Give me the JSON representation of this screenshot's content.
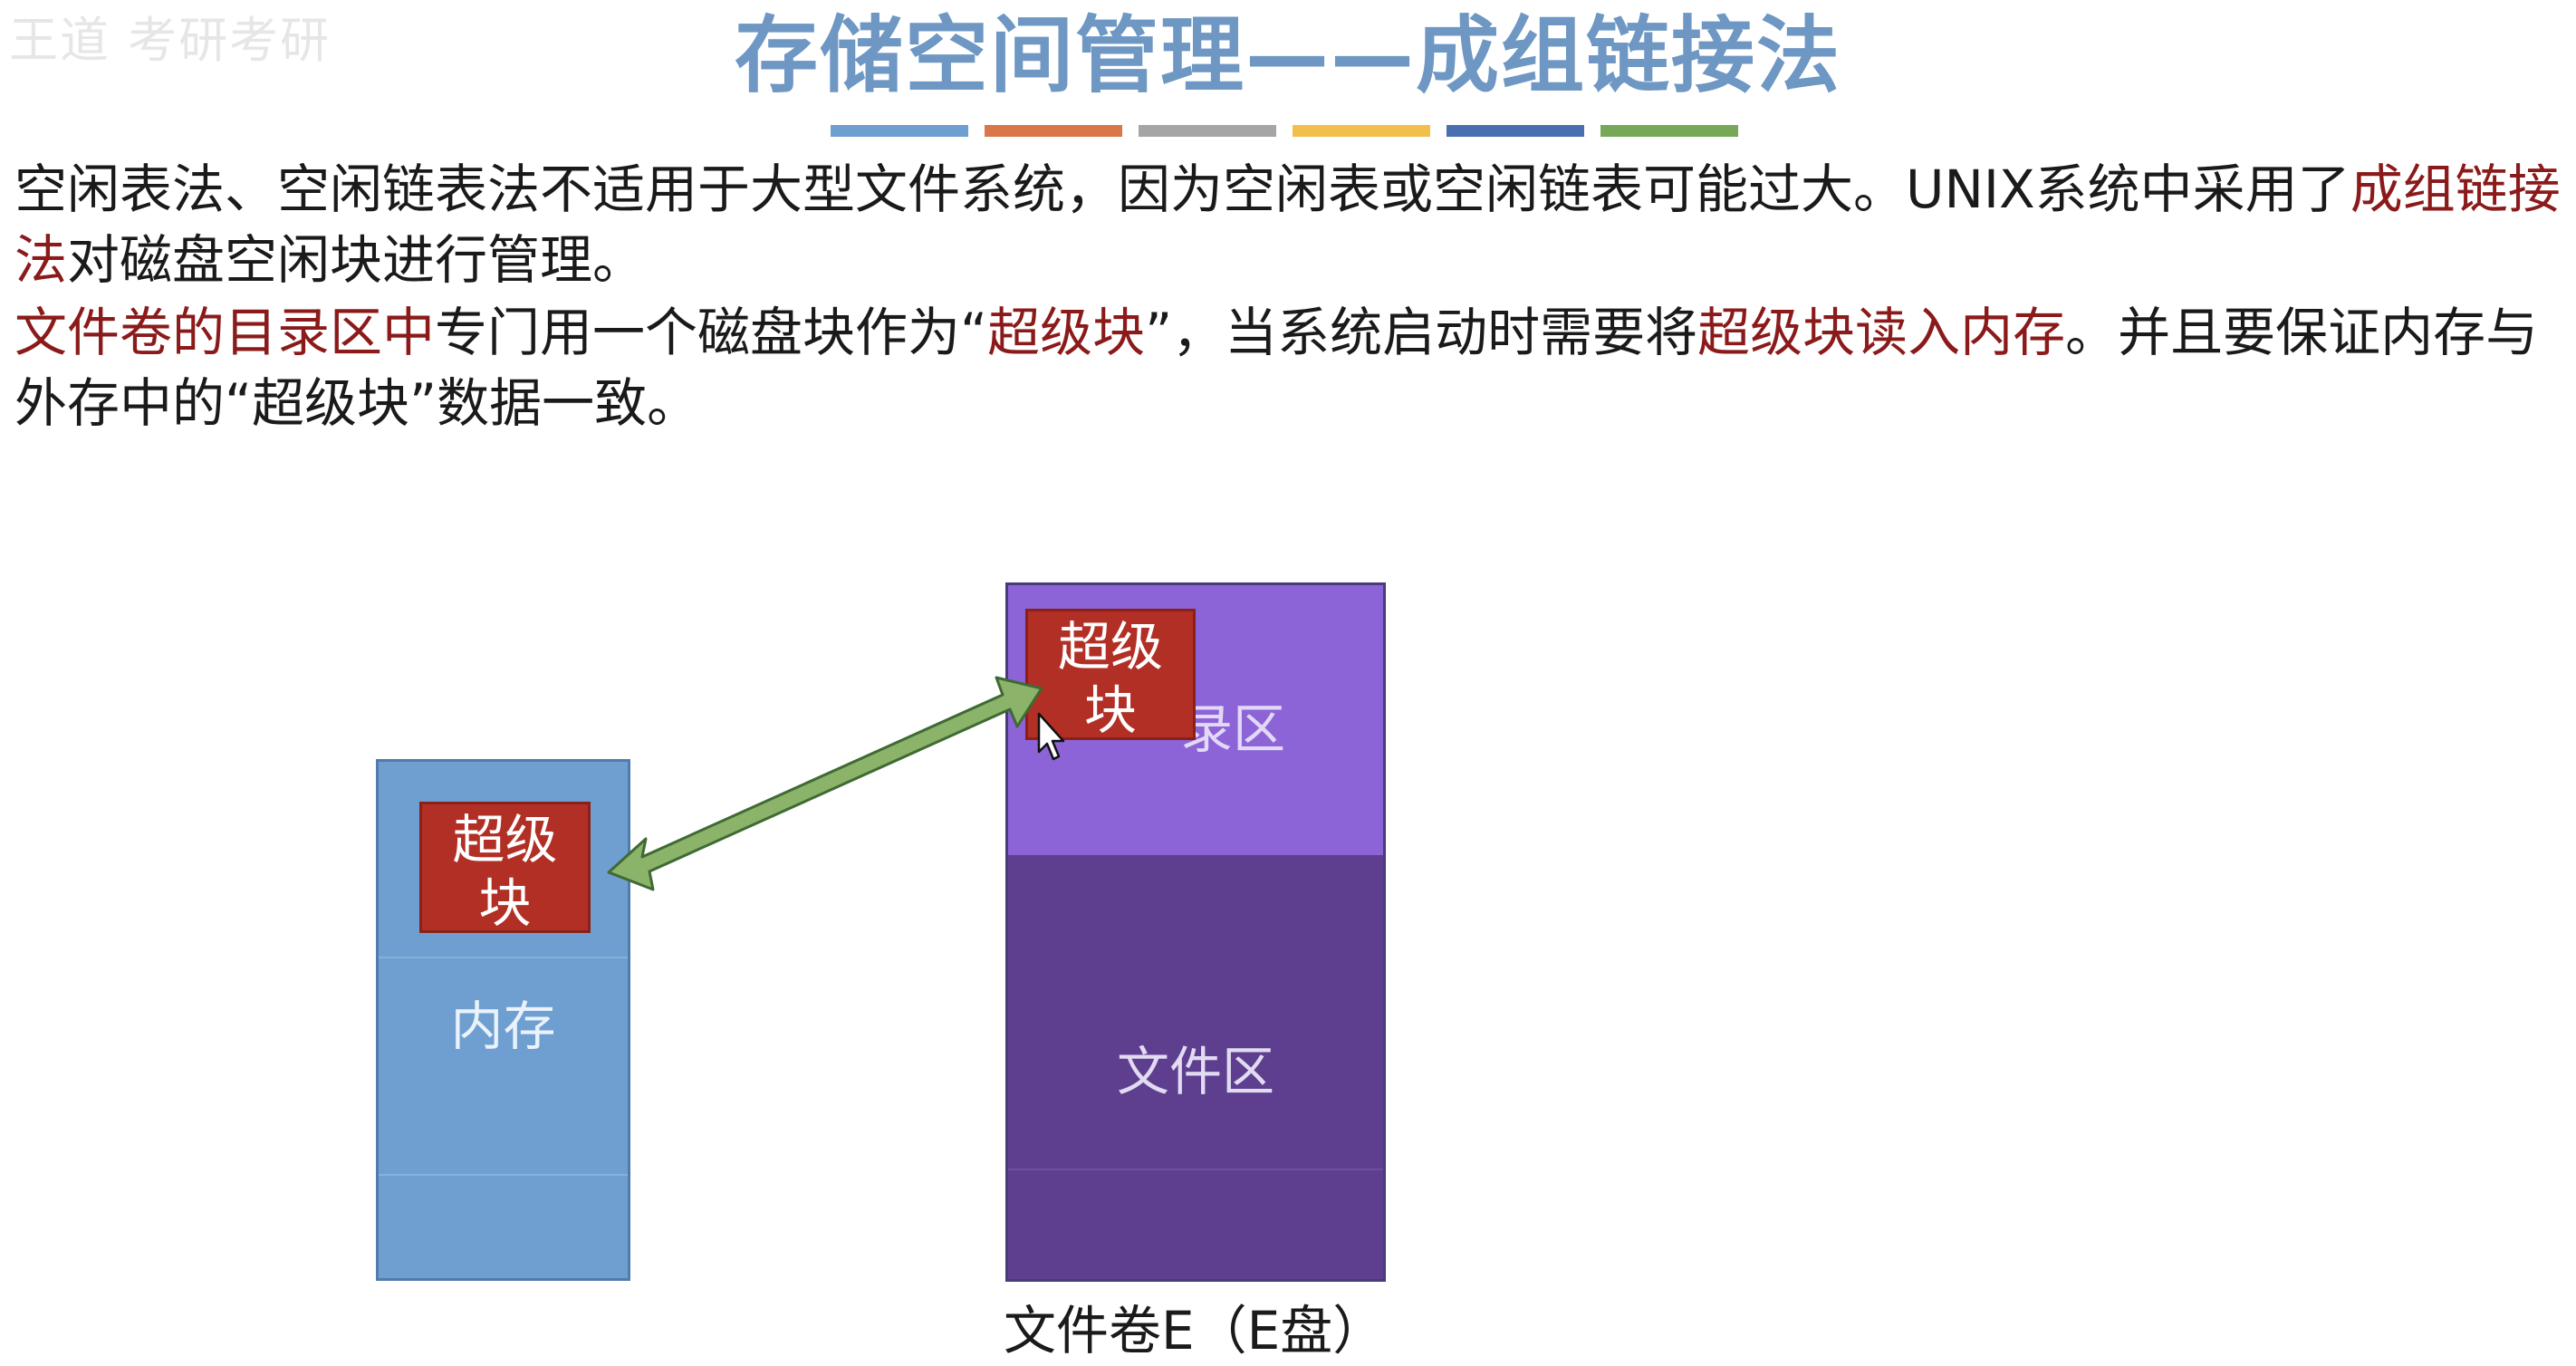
{
  "watermark": "王道 考研考研",
  "slide": {
    "title": "存储空间管理——成组链接法",
    "color_bars": [
      "#6f9fd0",
      "#d9774b",
      "#a5a5a5",
      "#f2c04a",
      "#4a6fb0",
      "#76a857"
    ]
  },
  "para1": {
    "t1": "空闲表法、空闲链表法不适用于大型文件系统，因为空闲表或空闲链表可能过大。UNIX系统中采用了",
    "t2": "成组链接法",
    "t3": "对磁盘空闲块进行管理。"
  },
  "para2": {
    "t1": "文件卷的目录区中",
    "t2": "专门用一个磁盘块作为“",
    "t3": "超级块",
    "t4": "”，当系统启动时需要将",
    "t5": "超级块读入内存",
    "t6": "。并且要保证内存与外存中的“超级块”数据一致。"
  },
  "diagram": {
    "memory_label": "内存",
    "superblock_line1": "超级",
    "superblock_line2": "块",
    "directory_label": "录区",
    "file_area_label": "文件区",
    "volume_caption": "文件卷E（E盘）",
    "colors": {
      "memory": "#6f9fd0",
      "superblock": "#b22f26",
      "directory_area": "#8c64d8",
      "file_area": "#5e3f8f",
      "arrow": "#8bb36a"
    }
  }
}
